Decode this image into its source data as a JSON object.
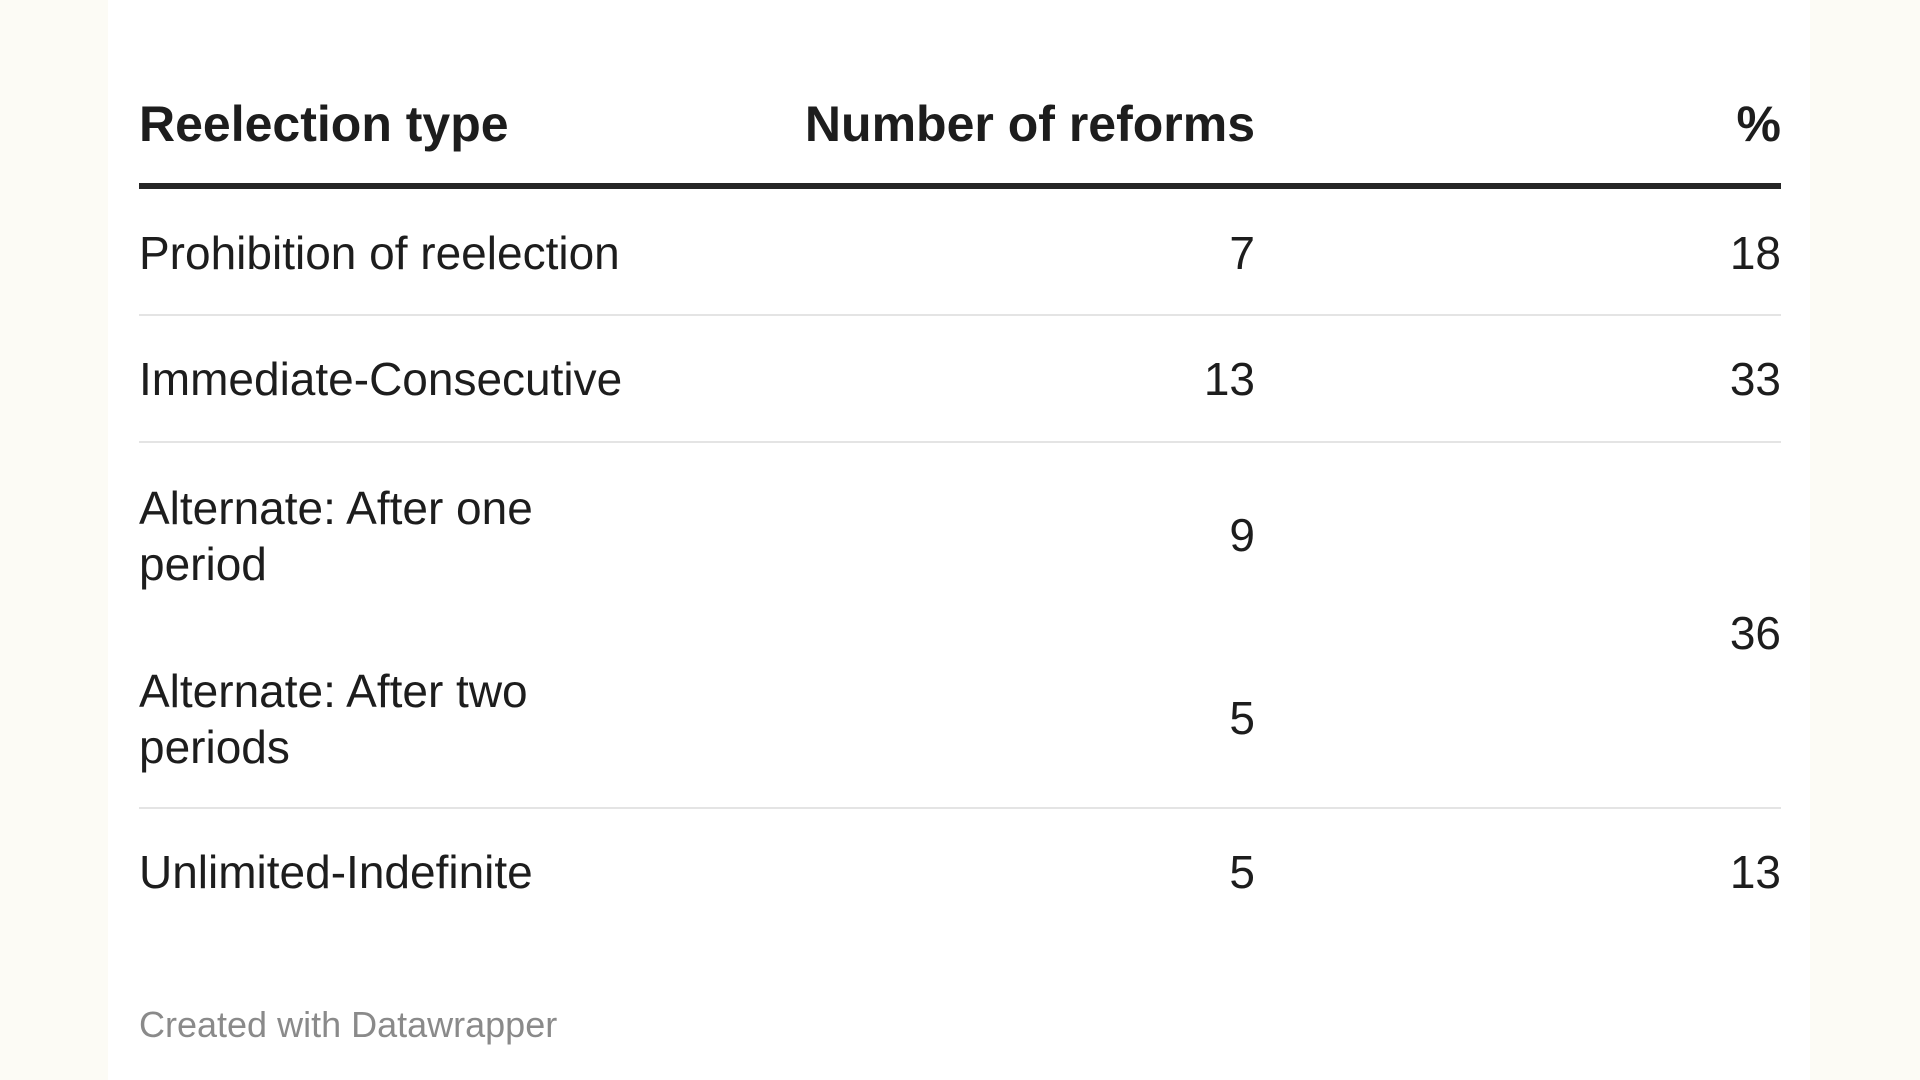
{
  "chart_data": {
    "type": "table",
    "columns": [
      "Reelection type",
      "Number of reforms",
      "%"
    ],
    "rows": [
      {
        "type": "Prohibition of reelection",
        "reforms": "7",
        "pct": "18"
      },
      {
        "type": "Immediate-Consecutive",
        "reforms": "13",
        "pct": "33"
      },
      {
        "type": "Alternate: After one period",
        "reforms": "9",
        "pct": "36"
      },
      {
        "type": "Alternate: After two periods",
        "reforms": "5",
        "pct": "36"
      },
      {
        "type": "Unlimited-Indefinite",
        "reforms": "5",
        "pct": "13"
      }
    ],
    "merged_pct_group": {
      "rows": [
        2,
        3
      ],
      "pct": "36"
    }
  },
  "table": {
    "headers": {
      "type": "Reelection type",
      "reforms": "Number of reforms",
      "pct": "%"
    },
    "rows": [
      {
        "type": "Prohibition of reelection",
        "reforms": "7",
        "pct": "18"
      },
      {
        "type": "Immediate-Consecutive",
        "reforms": "13",
        "pct": "33"
      },
      {
        "type": "Alternate: After one period",
        "reforms": "9"
      },
      {
        "type": "Alternate: After two periods",
        "reforms": "5"
      },
      {
        "type": "Unlimited-Indefinite",
        "reforms": "5",
        "pct": "13"
      }
    ],
    "alternate_pct": "36"
  },
  "footer": {
    "credit": "Created with Datawrapper"
  }
}
